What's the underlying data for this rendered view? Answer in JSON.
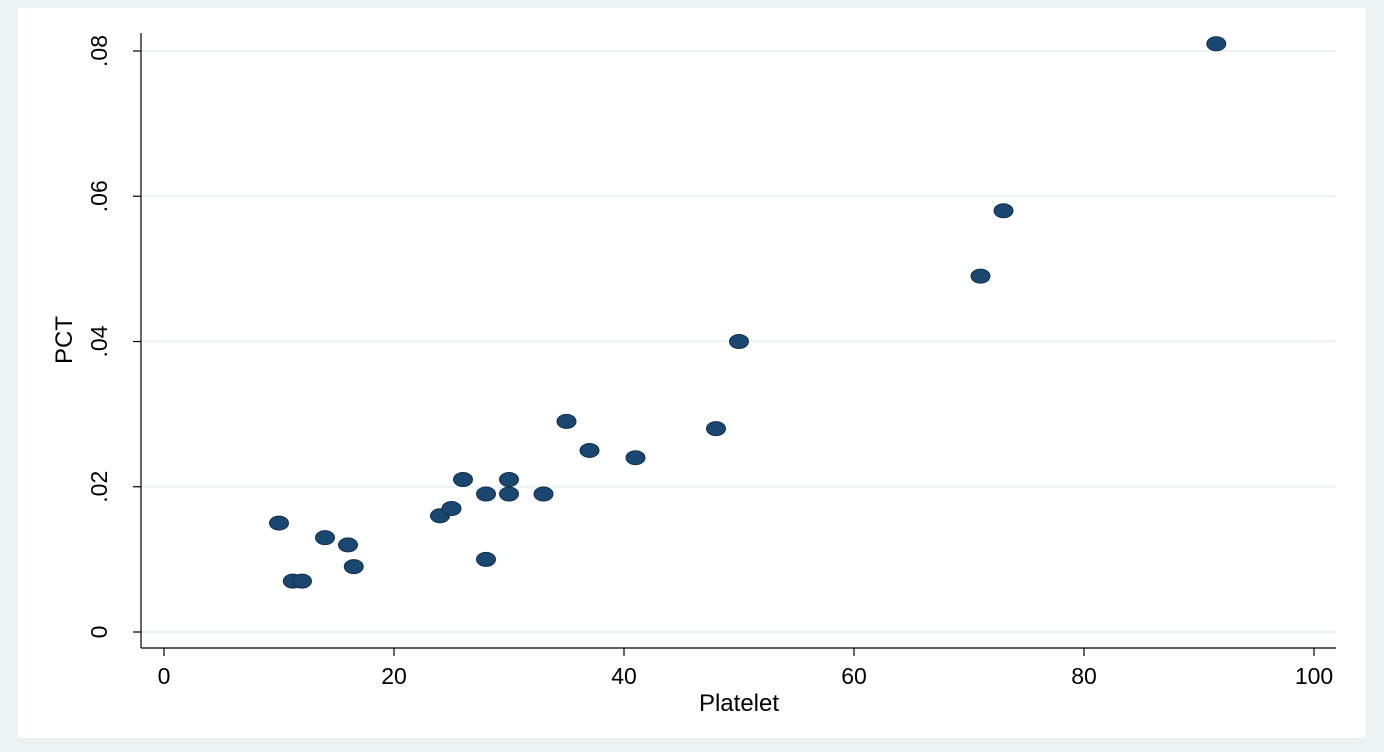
{
  "chart_data": {
    "type": "scatter",
    "xlabel": "Platelet",
    "ylabel": "PCT",
    "xlim": [
      0,
      100
    ],
    "ylim": [
      0,
      0.08
    ],
    "x_ticks": [
      0,
      20,
      40,
      60,
      80,
      100
    ],
    "x_tick_labels": [
      "0",
      "20",
      "40",
      "60",
      "80",
      "100"
    ],
    "y_ticks": [
      0,
      0.02,
      0.04,
      0.06,
      0.08
    ],
    "y_tick_labels": [
      "0",
      ".02",
      ".04",
      ".06",
      ".08"
    ],
    "grid": true,
    "series": [
      {
        "color": "#1a476f",
        "points": [
          {
            "x": 10,
            "y": 0.015
          },
          {
            "x": 11.2,
            "y": 0.007
          },
          {
            "x": 12,
            "y": 0.007
          },
          {
            "x": 14,
            "y": 0.013
          },
          {
            "x": 16,
            "y": 0.012
          },
          {
            "x": 16.5,
            "y": 0.009
          },
          {
            "x": 24,
            "y": 0.016
          },
          {
            "x": 25,
            "y": 0.017
          },
          {
            "x": 26,
            "y": 0.021
          },
          {
            "x": 28,
            "y": 0.019
          },
          {
            "x": 28,
            "y": 0.01
          },
          {
            "x": 30,
            "y": 0.021
          },
          {
            "x": 30,
            "y": 0.019
          },
          {
            "x": 33,
            "y": 0.019
          },
          {
            "x": 35,
            "y": 0.029
          },
          {
            "x": 37,
            "y": 0.025
          },
          {
            "x": 41,
            "y": 0.024
          },
          {
            "x": 48,
            "y": 0.028
          },
          {
            "x": 50,
            "y": 0.04
          },
          {
            "x": 71,
            "y": 0.049
          },
          {
            "x": 73,
            "y": 0.058
          },
          {
            "x": 91.5,
            "y": 0.081
          }
        ]
      }
    ]
  }
}
